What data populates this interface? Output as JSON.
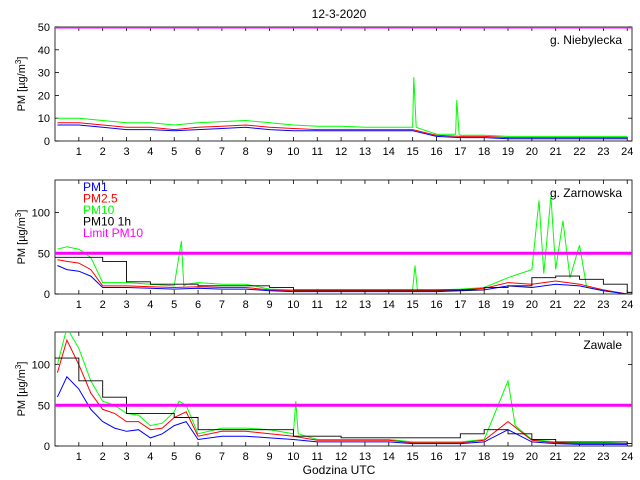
{
  "figure": {
    "title": "12-3-2020",
    "xlabel": "Godzina UTC",
    "ylabel_base": "PM [µg/m",
    "ylabel_sup": "3",
    "ylabel_close": "]"
  },
  "colors": {
    "PM1": "#0000ff",
    "PM2.5": "#ff0000",
    "PM10": "#00ff00",
    "PM10 1h": "#000000",
    "Limit PM10": "#ff00ff"
  },
  "legend": [
    "PM1",
    "PM2.5",
    "PM10",
    "PM10 1h",
    "Limit PM10"
  ],
  "chart_data": [
    {
      "type": "line",
      "station": "g. Niebylecka",
      "xlim": [
        0,
        24.2
      ],
      "ylim": [
        0,
        50
      ],
      "yticks": [
        0,
        10,
        20,
        30,
        40,
        50
      ],
      "xticks": [
        1,
        2,
        3,
        4,
        5,
        6,
        7,
        8,
        9,
        10,
        11,
        12,
        13,
        14,
        15,
        16,
        17,
        18,
        19,
        20,
        21,
        22,
        23,
        24
      ],
      "limit": 50,
      "hourly_pm10": [],
      "series": [
        {
          "name": "PM1",
          "x": [
            0.1,
            1,
            2,
            3,
            4,
            5,
            6,
            7,
            8,
            9,
            10,
            11,
            12,
            13,
            14,
            15,
            16,
            17,
            18,
            19,
            20,
            21,
            22,
            23,
            24
          ],
          "values": [
            7,
            7,
            6,
            5,
            5,
            4.5,
            5,
            5.5,
            6,
            5,
            4.5,
            4.5,
            4.5,
            4.5,
            4.5,
            4.5,
            2,
            1.5,
            1.5,
            1,
            1,
            1,
            1,
            1,
            1
          ]
        },
        {
          "name": "PM2.5",
          "x": [
            0.1,
            1,
            2,
            3,
            4,
            5,
            6,
            7,
            8,
            9,
            10,
            11,
            12,
            13,
            14,
            15,
            16,
            17,
            18,
            19,
            20,
            21,
            22,
            23,
            24
          ],
          "values": [
            8,
            8,
            7,
            6,
            6,
            5,
            6,
            6.5,
            7,
            6,
            5.5,
            5,
            5,
            5,
            5,
            5,
            2.5,
            2,
            2,
            1.5,
            1.5,
            1.5,
            1.5,
            1.5,
            1.5
          ]
        },
        {
          "name": "PM10",
          "x": [
            0.1,
            1,
            2,
            3,
            4,
            5,
            6,
            7,
            8,
            9,
            10,
            11,
            12,
            13,
            14,
            15,
            15.05,
            15.15,
            16,
            16.8,
            16.85,
            16.95,
            17,
            18,
            19,
            20,
            21,
            22,
            23,
            24
          ],
          "values": [
            10,
            10,
            9,
            8,
            8,
            7,
            8,
            8.5,
            9,
            8,
            7,
            6.5,
            6.5,
            6,
            6,
            6,
            28,
            6,
            3,
            3,
            18,
            3,
            2.5,
            2.5,
            2,
            2,
            2,
            2,
            2,
            2
          ]
        }
      ]
    },
    {
      "type": "line",
      "station": "g. Zarnowska",
      "xlim": [
        0,
        24.2
      ],
      "ylim": [
        0,
        140
      ],
      "yticks": [
        0,
        50,
        100
      ],
      "xticks": [
        1,
        2,
        3,
        4,
        5,
        6,
        7,
        8,
        9,
        10,
        11,
        12,
        13,
        14,
        15,
        16,
        17,
        18,
        19,
        20,
        21,
        22,
        23,
        24
      ],
      "limit": 50,
      "hourly_pm10": [
        45,
        45,
        40,
        15,
        12,
        12,
        10,
        10,
        10,
        8,
        5,
        5,
        5,
        5,
        5,
        5,
        5,
        5,
        8,
        10,
        20,
        22,
        18,
        12,
        2
      ],
      "series": [
        {
          "name": "PM1",
          "x": [
            0.1,
            0.5,
            1,
            1.5,
            2,
            3,
            4,
            5,
            6,
            7,
            8,
            9,
            10,
            11,
            12,
            13,
            14,
            15,
            16,
            17,
            18,
            19,
            20,
            21,
            22,
            23,
            24
          ],
          "values": [
            35,
            30,
            28,
            22,
            8,
            8,
            7,
            6,
            7,
            6,
            6,
            4,
            3,
            3,
            3,
            3,
            3,
            3,
            3,
            4,
            5,
            10,
            8,
            12,
            10,
            4,
            0
          ]
        },
        {
          "name": "PM2.5",
          "x": [
            0.1,
            0.5,
            1,
            1.5,
            2,
            3,
            4,
            5,
            6,
            7,
            8,
            9,
            10,
            11,
            12,
            13,
            14,
            15,
            16,
            17,
            18,
            19,
            20,
            21,
            22,
            23,
            24
          ],
          "values": [
            42,
            40,
            38,
            30,
            10,
            10,
            9,
            8,
            9,
            8,
            8,
            5,
            4,
            4,
            4,
            4,
            4,
            4,
            4,
            5,
            7,
            14,
            12,
            16,
            12,
            5,
            0
          ]
        },
        {
          "name": "PM10",
          "x": [
            0.1,
            0.5,
            1,
            1.5,
            2,
            3,
            4,
            5,
            5.3,
            5.4,
            5.5,
            6,
            7,
            8,
            9,
            10,
            11,
            12,
            13,
            14,
            15,
            15.1,
            15.2,
            16,
            17,
            18,
            19,
            20,
            20.3,
            20.5,
            20.8,
            21,
            21.3,
            21.6,
            22,
            22.3,
            23,
            24
          ],
          "values": [
            55,
            58,
            55,
            45,
            14,
            14,
            12,
            10,
            65,
            10,
            12,
            14,
            12,
            12,
            6,
            5,
            5,
            5,
            5,
            5,
            5,
            35,
            5,
            5,
            6,
            8,
            20,
            30,
            115,
            25,
            120,
            30,
            90,
            20,
            60,
            8,
            4,
            0
          ]
        }
      ]
    },
    {
      "type": "line",
      "station": "Zawale",
      "xlim": [
        0,
        24.2
      ],
      "ylim": [
        0,
        140
      ],
      "yticks": [
        0,
        50,
        100
      ],
      "xticks": [
        1,
        2,
        3,
        4,
        5,
        6,
        7,
        8,
        9,
        10,
        11,
        12,
        13,
        14,
        15,
        16,
        17,
        18,
        19,
        20,
        21,
        22,
        23,
        24
      ],
      "limit": 50,
      "hourly_pm10": [
        108,
        80,
        60,
        40,
        40,
        35,
        20,
        20,
        20,
        20,
        12,
        12,
        10,
        10,
        10,
        10,
        10,
        15,
        20,
        15,
        8,
        5,
        5,
        5,
        3
      ],
      "series": [
        {
          "name": "PM1",
          "x": [
            0.1,
            0.5,
            1,
            1.5,
            2,
            2.5,
            3,
            3.5,
            4,
            4.5,
            5,
            5.5,
            6,
            7,
            8,
            9,
            10,
            11,
            12,
            13,
            14,
            15,
            16,
            17,
            18,
            19,
            20,
            21,
            22,
            23,
            24
          ],
          "values": [
            60,
            85,
            70,
            45,
            30,
            22,
            18,
            20,
            10,
            15,
            25,
            30,
            8,
            12,
            12,
            10,
            8,
            5,
            5,
            5,
            5,
            3,
            3,
            3,
            5,
            20,
            5,
            3,
            2,
            2,
            2
          ]
        },
        {
          "name": "PM2.5",
          "x": [
            0.1,
            0.5,
            1,
            1.5,
            2,
            2.5,
            3,
            3.5,
            4,
            4.5,
            5,
            5.5,
            6,
            7,
            8,
            9,
            10,
            11,
            12,
            13,
            14,
            15,
            16,
            17,
            18,
            19,
            20,
            21,
            22,
            23,
            24
          ],
          "values": [
            90,
            130,
            100,
            65,
            45,
            40,
            30,
            30,
            20,
            22,
            35,
            42,
            12,
            18,
            18,
            15,
            12,
            7,
            7,
            7,
            7,
            4,
            4,
            4,
            7,
            30,
            7,
            4,
            3,
            3,
            3
          ]
        },
        {
          "name": "PM10",
          "x": [
            0.1,
            0.5,
            1,
            1.5,
            2,
            2.5,
            3,
            3.5,
            4,
            4.5,
            5,
            5.2,
            5.5,
            6,
            7,
            8,
            9,
            10,
            10.1,
            10.2,
            11,
            12,
            13,
            14,
            15,
            16,
            17,
            18,
            19,
            19.3,
            20,
            21,
            22,
            23,
            24
          ],
          "values": [
            100,
            145,
            120,
            80,
            55,
            50,
            40,
            38,
            25,
            28,
            42,
            55,
            50,
            15,
            22,
            22,
            20,
            15,
            55,
            15,
            8,
            8,
            8,
            8,
            5,
            5,
            5,
            8,
            80,
            25,
            8,
            5,
            4,
            4,
            3
          ]
        }
      ]
    }
  ]
}
